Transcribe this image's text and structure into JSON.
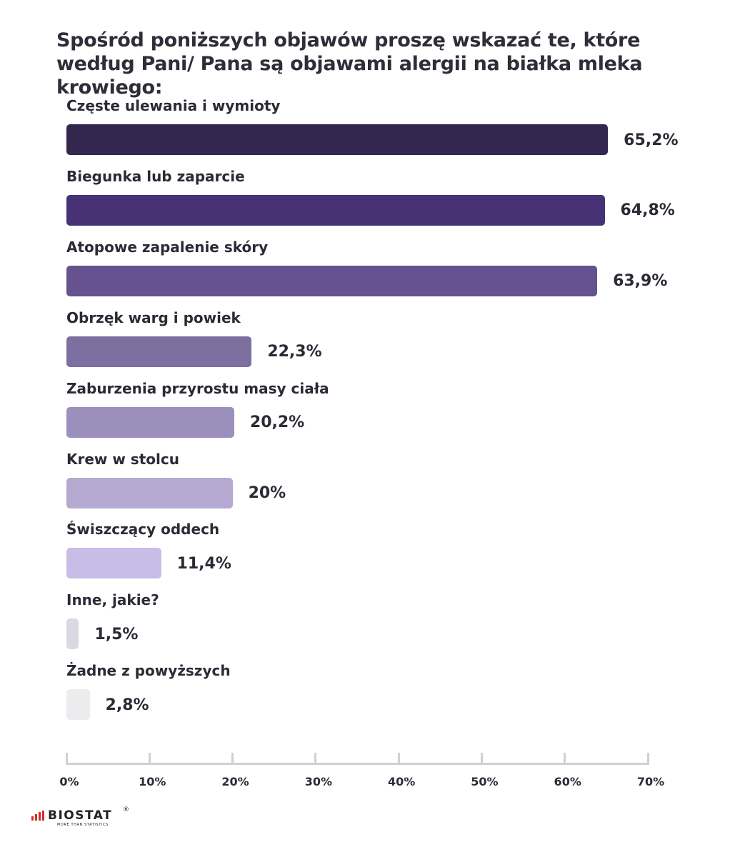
{
  "chart_data": {
    "type": "bar",
    "orientation": "horizontal",
    "title": "Spośród poniższych objawów proszę wskazać te, które według Pani/ Pana są objawami alergii na białka mleka krowiego:",
    "categories": [
      "Częste ulewania i wymioty",
      "Biegunka lub zaparcie",
      "Atopowe zapalenie skóry",
      "Obrzęk warg i powiek",
      "Zaburzenia przyrostu masy ciała",
      "Krew w stolcu",
      "Świszczący oddech",
      "Inne, jakie?",
      "Żadne z powyższych"
    ],
    "values": [
      65.2,
      64.8,
      63.9,
      22.3,
      20.2,
      20,
      11.4,
      1.5,
      2.8
    ],
    "value_labels": [
      "65,2%",
      "64,8%",
      "63,9%",
      "22,3%",
      "20,2%",
      "20%",
      "11,4%",
      "1,5%",
      "2,8%"
    ],
    "colors": [
      "#33264f",
      "#463275",
      "#65528f",
      "#7d6f9f",
      "#9b8fbc",
      "#b5a9d2",
      "#c8bde6",
      "#d9d9e1",
      "#ececee"
    ],
    "xlim": [
      0,
      70
    ],
    "xticks": [
      0,
      10,
      20,
      30,
      40,
      50,
      60,
      70
    ],
    "xtick_labels": [
      "0%",
      "10%",
      "20%",
      "30%",
      "40%",
      "50%",
      "60%",
      "70%"
    ],
    "xlabel": "",
    "ylabel": ""
  },
  "logo": {
    "name": "BIOSTAT",
    "tagline": "MORE THAN STATISTICS",
    "registered": "®"
  }
}
